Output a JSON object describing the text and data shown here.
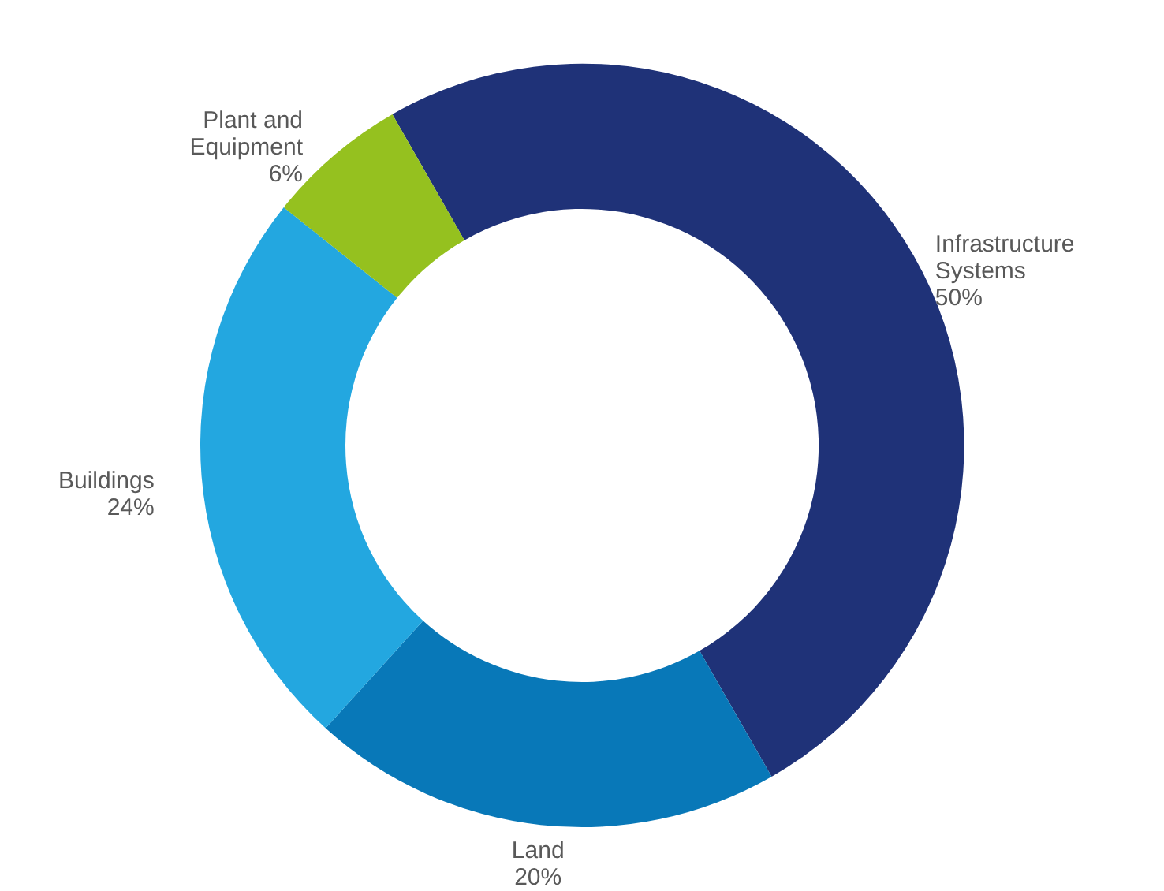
{
  "chart_data": {
    "type": "donut",
    "categories": [
      "Infrastructure Systems",
      "Land",
      "Buildings",
      "Plant and Equipment"
    ],
    "values": [
      50,
      20,
      24,
      6
    ],
    "value_labels": [
      "50%",
      "20%",
      "24%",
      "6%"
    ],
    "colors": [
      "#1f3278",
      "#0878b8",
      "#23a7e0",
      "#95c11f"
    ]
  }
}
